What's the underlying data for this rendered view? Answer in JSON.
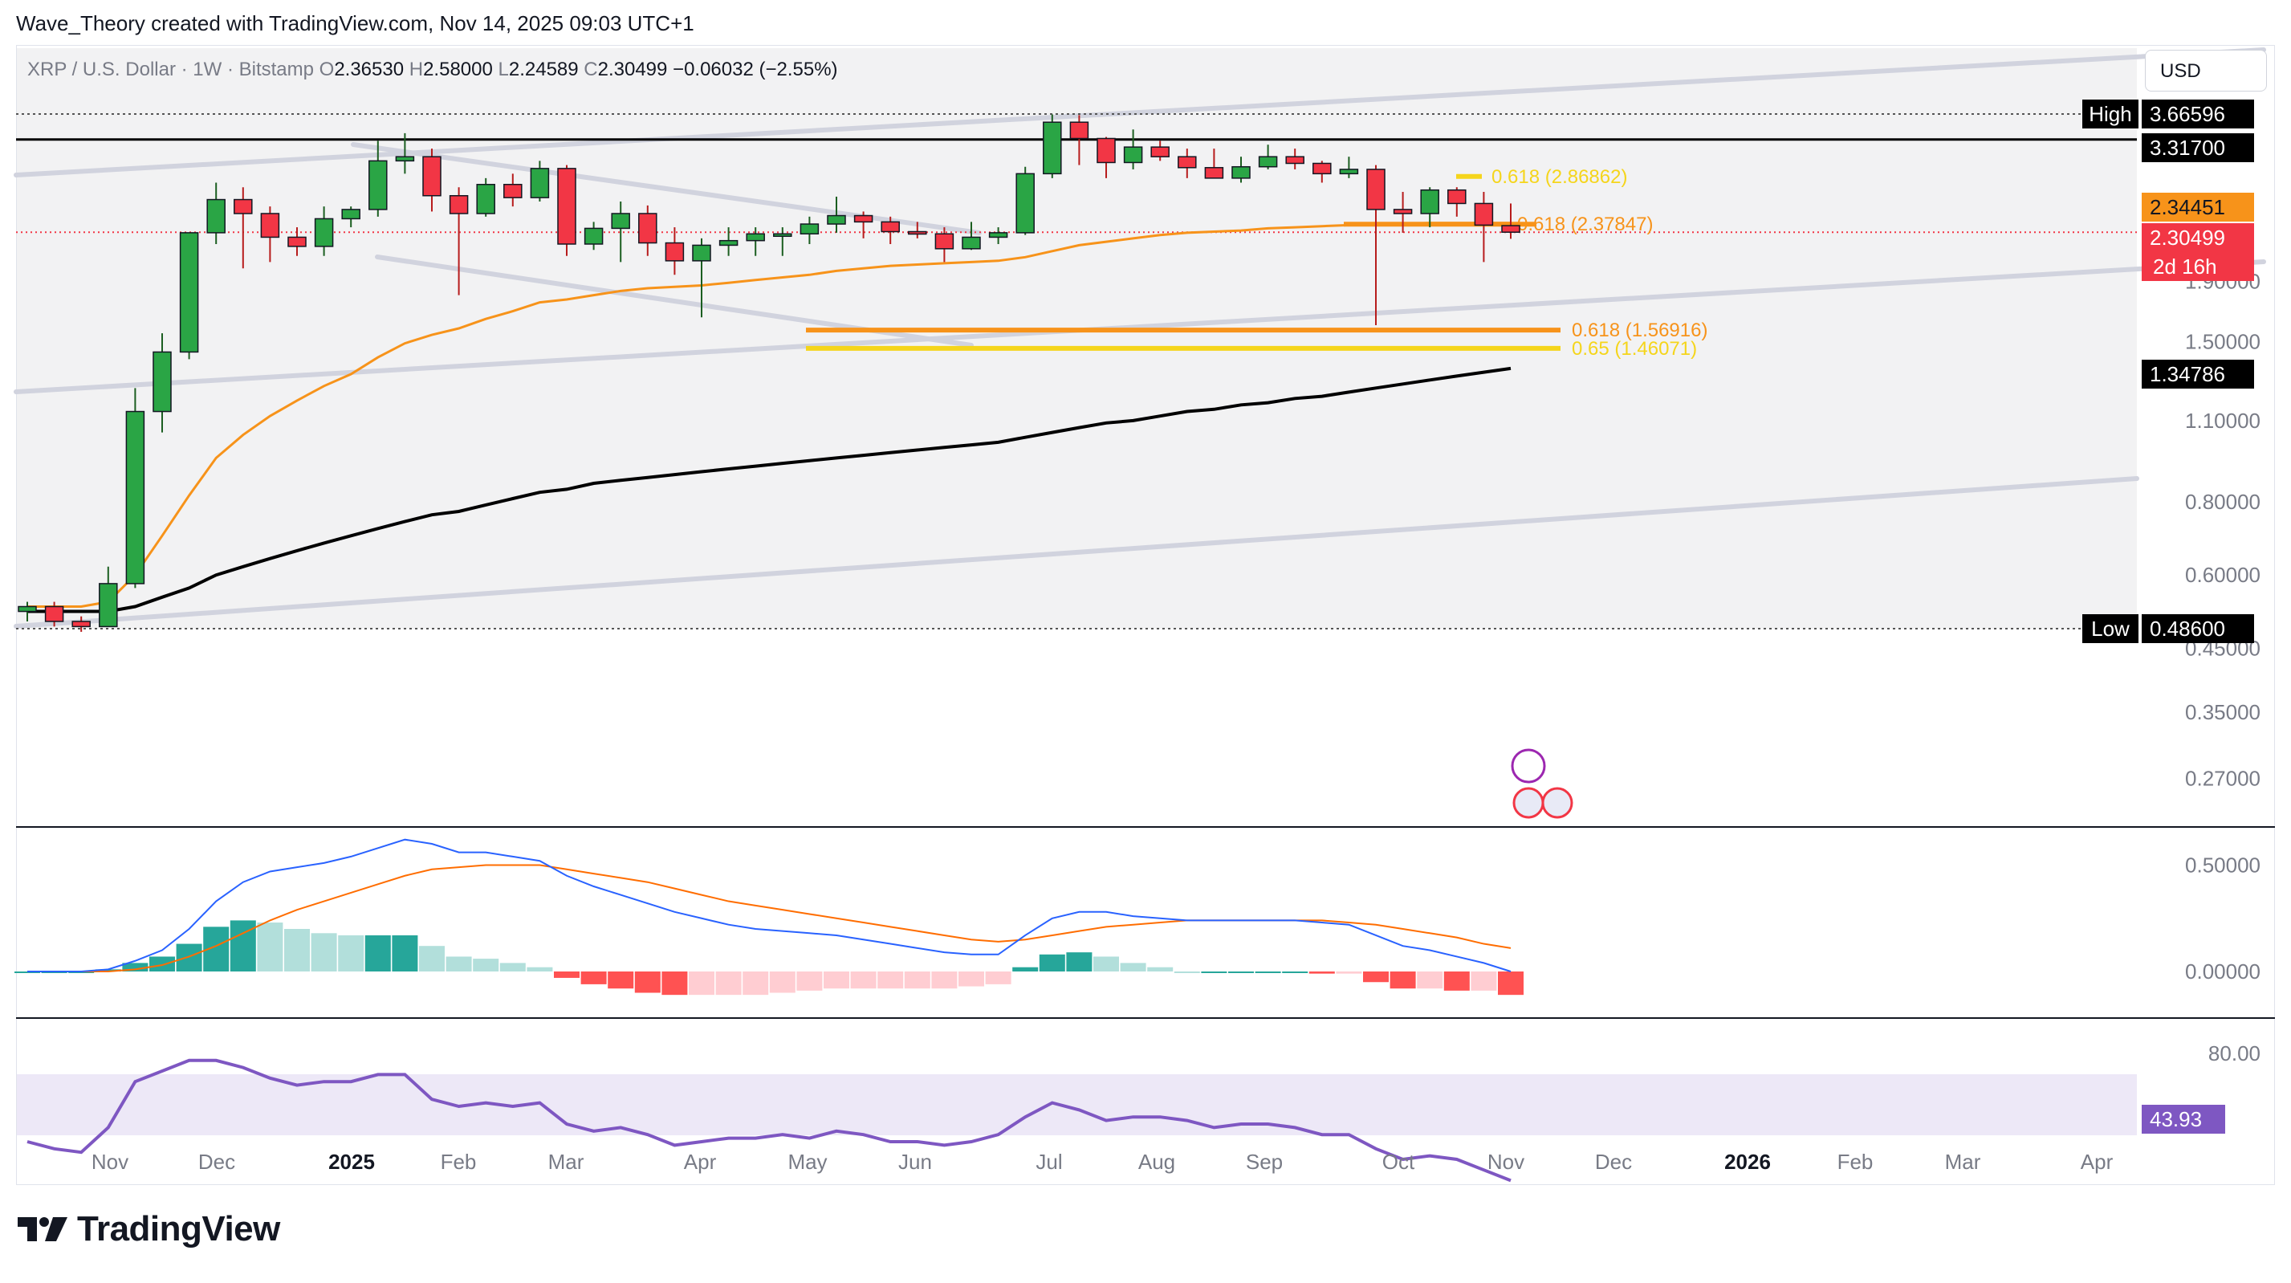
{
  "header": {
    "attribution": "Wave_Theory created with TradingView.com, Nov 14, 2025 09:03 UTC+1"
  },
  "legend": {
    "symbol": "XRP / U.S. Dollar · 1W · Bitstamp",
    "o_label": "O",
    "o_value": "2.36530",
    "h_label": "H",
    "h_value": "2.58000",
    "l_label": "L",
    "l_value": "2.24589",
    "c_label": "C",
    "c_value": "2.30499",
    "change": "−0.06032 (−2.55%)"
  },
  "currency_button": "USD",
  "brand": "TradingView",
  "colors": {
    "up": "#2aa545",
    "down": "#f23645",
    "ema_fast": "#f7931a",
    "ema_slow": "#000000",
    "fib_orange": "#f7931a",
    "fib_yellow": "#f5d51b",
    "macd": "#2962ff",
    "signal": "#ff6d00",
    "hist_up_strong": "#26a69a",
    "hist_up_weak": "#b2dfdb",
    "hist_down_strong": "#ff5252",
    "hist_down_weak": "#ffcdd2",
    "rsi": "#7e57c2"
  },
  "chart_data": {
    "type": "candlestick",
    "timeframe": "1W",
    "price_axis": {
      "scale": "log",
      "ticks": [
        "1.90000",
        "1.50000",
        "1.10000",
        "0.80000",
        "0.60000",
        "0.45000",
        "0.35000",
        "0.27000"
      ]
    },
    "time_axis": [
      "Nov",
      "Dec",
      "2025",
      "Feb",
      "Mar",
      "Apr",
      "May",
      "Jun",
      "Jul",
      "Aug",
      "Sep",
      "Oct",
      "Nov",
      "Dec",
      "2026",
      "Feb",
      "Mar",
      "Apr"
    ],
    "price_labels": [
      {
        "tag": "High",
        "value": "3.66596"
      },
      {
        "tag": "",
        "value": "3.31700"
      },
      {
        "tag": "",
        "value": "2.34451"
      },
      {
        "tag": "",
        "value": "2.30499",
        "sub": "2d 16h"
      },
      {
        "tag": "",
        "value": "1.34786"
      },
      {
        "tag": "Low",
        "value": "0.48600"
      }
    ],
    "fib_labels": [
      {
        "text": "0.618 (2.86862)",
        "value": 2.86862
      },
      {
        "text": "0.618 (2.37847)",
        "value": 2.37847
      },
      {
        "text": "0.618 (1.56916)",
        "value": 1.56916
      },
      {
        "text": "0.65 (1.46071)",
        "value": 1.46071
      }
    ],
    "candles": [
      [
        0.52,
        0.54,
        0.5,
        0.53
      ],
      [
        0.53,
        0.54,
        0.49,
        0.5
      ],
      [
        0.5,
        0.51,
        0.48,
        0.49
      ],
      [
        0.49,
        0.62,
        0.49,
        0.58
      ],
      [
        0.58,
        1.25,
        0.57,
        1.14
      ],
      [
        1.14,
        1.55,
        1.05,
        1.44
      ],
      [
        1.44,
        2.3,
        1.4,
        2.3
      ],
      [
        2.3,
        2.8,
        2.2,
        2.62
      ],
      [
        2.62,
        2.75,
        2.0,
        2.48
      ],
      [
        2.48,
        2.55,
        2.05,
        2.26
      ],
      [
        2.26,
        2.35,
        2.1,
        2.18
      ],
      [
        2.18,
        2.55,
        2.1,
        2.43
      ],
      [
        2.43,
        2.55,
        2.35,
        2.52
      ],
      [
        2.52,
        3.3,
        2.45,
        3.05
      ],
      [
        3.05,
        3.4,
        2.9,
        3.1
      ],
      [
        3.1,
        3.2,
        2.5,
        2.66
      ],
      [
        2.66,
        2.75,
        1.8,
        2.48
      ],
      [
        2.48,
        2.85,
        2.45,
        2.78
      ],
      [
        2.78,
        2.9,
        2.55,
        2.64
      ],
      [
        2.64,
        3.05,
        2.6,
        2.96
      ],
      [
        2.96,
        3.0,
        2.1,
        2.2
      ],
      [
        2.2,
        2.4,
        2.15,
        2.34
      ],
      [
        2.34,
        2.6,
        2.05,
        2.48
      ],
      [
        2.48,
        2.56,
        2.1,
        2.21
      ],
      [
        2.21,
        2.35,
        1.95,
        2.06
      ],
      [
        2.06,
        2.25,
        1.65,
        2.19
      ],
      [
        2.19,
        2.35,
        2.1,
        2.23
      ],
      [
        2.23,
        2.35,
        2.1,
        2.29
      ],
      [
        2.29,
        2.35,
        2.1,
        2.29
      ],
      [
        2.29,
        2.45,
        2.2,
        2.38
      ],
      [
        2.38,
        2.65,
        2.3,
        2.46
      ],
      [
        2.46,
        2.5,
        2.25,
        2.4
      ],
      [
        2.4,
        2.45,
        2.2,
        2.31
      ],
      [
        2.31,
        2.4,
        2.25,
        2.29
      ],
      [
        2.29,
        2.35,
        2.05,
        2.16
      ],
      [
        2.16,
        2.4,
        2.15,
        2.26
      ],
      [
        2.26,
        2.35,
        2.2,
        2.3
      ],
      [
        2.3,
        2.98,
        2.28,
        2.9
      ],
      [
        2.9,
        3.66,
        2.85,
        3.55
      ],
      [
        3.55,
        3.65,
        3.0,
        3.33
      ],
      [
        3.33,
        3.35,
        2.85,
        3.03
      ],
      [
        3.03,
        3.45,
        2.95,
        3.22
      ],
      [
        3.22,
        3.3,
        3.05,
        3.1
      ],
      [
        3.1,
        3.2,
        2.85,
        2.97
      ],
      [
        2.97,
        3.2,
        2.85,
        2.85
      ],
      [
        2.85,
        3.1,
        2.8,
        2.98
      ],
      [
        2.98,
        3.25,
        2.95,
        3.1
      ],
      [
        3.1,
        3.2,
        2.95,
        3.02
      ],
      [
        3.02,
        3.05,
        2.8,
        2.9
      ],
      [
        2.9,
        3.1,
        2.85,
        2.95
      ],
      [
        2.95,
        3.0,
        1.6,
        2.52
      ],
      [
        2.52,
        2.7,
        2.3,
        2.48
      ],
      [
        2.48,
        2.75,
        2.35,
        2.72
      ],
      [
        2.72,
        2.75,
        2.45,
        2.58
      ],
      [
        2.58,
        2.7,
        2.05,
        2.37
      ],
      [
        2.365,
        2.58,
        2.246,
        2.305
      ]
    ],
    "ema_fast": [
      0.53,
      0.53,
      0.53,
      0.54,
      0.6,
      0.7,
      0.82,
      0.95,
      1.04,
      1.12,
      1.19,
      1.26,
      1.32,
      1.41,
      1.49,
      1.54,
      1.58,
      1.64,
      1.69,
      1.75,
      1.77,
      1.8,
      1.83,
      1.85,
      1.86,
      1.87,
      1.89,
      1.91,
      1.93,
      1.95,
      1.98,
      2.0,
      2.02,
      2.03,
      2.04,
      2.05,
      2.06,
      2.09,
      2.14,
      2.19,
      2.22,
      2.25,
      2.28,
      2.3,
      2.31,
      2.32,
      2.34,
      2.35,
      2.36,
      2.37,
      2.38,
      2.38,
      2.39,
      2.39,
      2.39,
      2.39
    ],
    "ema_slow": [
      0.52,
      0.52,
      0.52,
      0.52,
      0.53,
      0.55,
      0.57,
      0.6,
      0.62,
      0.64,
      0.66,
      0.68,
      0.7,
      0.72,
      0.74,
      0.76,
      0.77,
      0.79,
      0.81,
      0.83,
      0.84,
      0.86,
      0.87,
      0.88,
      0.89,
      0.9,
      0.91,
      0.92,
      0.93,
      0.94,
      0.95,
      0.96,
      0.97,
      0.98,
      0.99,
      1.0,
      1.01,
      1.03,
      1.05,
      1.07,
      1.09,
      1.1,
      1.12,
      1.14,
      1.15,
      1.17,
      1.18,
      1.2,
      1.21,
      1.23,
      1.25,
      1.27,
      1.29,
      1.31,
      1.33,
      1.35
    ],
    "macd_panel": {
      "ticks": [
        "0.50000",
        "0.00000"
      ],
      "macd": [
        0.0,
        0.0,
        0.0,
        0.01,
        0.05,
        0.1,
        0.2,
        0.33,
        0.42,
        0.47,
        0.49,
        0.51,
        0.54,
        0.58,
        0.62,
        0.6,
        0.56,
        0.56,
        0.54,
        0.52,
        0.45,
        0.4,
        0.36,
        0.32,
        0.28,
        0.25,
        0.22,
        0.2,
        0.19,
        0.18,
        0.17,
        0.15,
        0.13,
        0.11,
        0.09,
        0.08,
        0.08,
        0.17,
        0.25,
        0.28,
        0.28,
        0.26,
        0.25,
        0.24,
        0.24,
        0.24,
        0.24,
        0.24,
        0.23,
        0.22,
        0.17,
        0.12,
        0.1,
        0.07,
        0.04,
        0.0
      ],
      "signal": [
        0.0,
        0.0,
        0.0,
        0.0,
        0.01,
        0.03,
        0.07,
        0.12,
        0.18,
        0.24,
        0.29,
        0.33,
        0.37,
        0.41,
        0.45,
        0.48,
        0.49,
        0.5,
        0.5,
        0.5,
        0.48,
        0.46,
        0.44,
        0.42,
        0.39,
        0.36,
        0.33,
        0.31,
        0.29,
        0.27,
        0.25,
        0.23,
        0.21,
        0.19,
        0.17,
        0.15,
        0.14,
        0.15,
        0.17,
        0.19,
        0.21,
        0.22,
        0.23,
        0.24,
        0.24,
        0.24,
        0.24,
        0.24,
        0.24,
        0.23,
        0.22,
        0.2,
        0.18,
        0.16,
        0.13,
        0.11
      ],
      "histogram": [
        0.0,
        0.0,
        0.0,
        0.01,
        0.04,
        0.07,
        0.13,
        0.21,
        0.24,
        0.23,
        0.2,
        0.18,
        0.17,
        0.17,
        0.17,
        0.12,
        0.07,
        0.06,
        0.04,
        0.02,
        -0.03,
        -0.06,
        -0.08,
        -0.1,
        -0.11,
        -0.11,
        -0.11,
        -0.11,
        -0.1,
        -0.09,
        -0.08,
        -0.08,
        -0.08,
        -0.08,
        -0.08,
        -0.07,
        -0.06,
        0.02,
        0.08,
        0.09,
        0.07,
        0.04,
        0.02,
        0.0,
        0.0,
        0.0,
        0.0,
        0.0,
        -0.01,
        -0.01,
        -0.05,
        -0.08,
        -0.08,
        -0.09,
        -0.09,
        -0.11
      ]
    },
    "rsi_panel": {
      "ticks": [
        "80.00"
      ],
      "current": "43.93",
      "values": [
        55,
        53,
        52,
        59,
        72,
        75,
        78,
        78,
        76,
        73,
        71,
        72,
        72,
        74,
        74,
        67,
        65,
        66,
        65,
        66,
        60,
        58,
        59,
        57,
        54,
        55,
        56,
        56,
        57,
        56,
        58,
        57,
        55,
        55,
        54,
        55,
        57,
        62,
        66,
        64,
        61,
        62,
        62,
        61,
        59,
        60,
        60,
        59,
        57,
        57,
        53,
        50,
        51,
        50,
        47,
        44
      ]
    }
  }
}
